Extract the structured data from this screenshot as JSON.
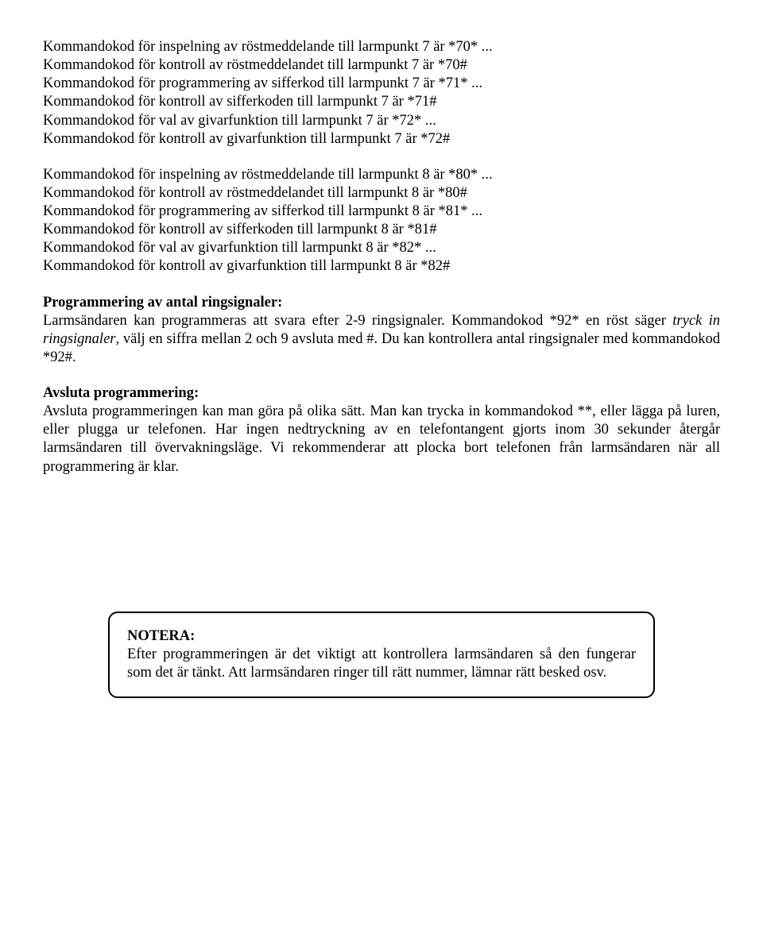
{
  "block1": {
    "l1": "Kommandokod för inspelning av röstmeddelande till larmpunkt 7 är *70* ...",
    "l2": "Kommandokod för kontroll av röstmeddelandet till larmpunkt 7 är *70#",
    "l3": "Kommandokod för programmering av sifferkod till larmpunkt 7 är *71* ...",
    "l4": "Kommandokod för kontroll av sifferkoden till larmpunkt 7 är *71#",
    "l5": "Kommandokod för val av givarfunktion till larmpunkt 7 är *72* ...",
    "l6": "Kommandokod för kontroll av givarfunktion till larmpunkt 7 är *72#"
  },
  "block2": {
    "l1": "Kommandokod för inspelning av röstmeddelande till larmpunkt 8 är *80* ...",
    "l2": "Kommandokod för kontroll av röstmeddelandet till larmpunkt 8 är *80#",
    "l3": "Kommandokod för programmering av sifferkod till larmpunkt 8 är *81* ...",
    "l4": "Kommandokod för kontroll av sifferkoden till larmpunkt 8 är *81#",
    "l5": "Kommandokod för val av givarfunktion till larmpunkt 8 är *82* ...",
    "l6": "Kommandokod för kontroll av givarfunktion till larmpunkt 8 är *82#"
  },
  "ringsig": {
    "heading": "Programmering av antal ringsignaler:",
    "body_pre": "Larmsändaren kan programmeras att svara efter 2-9 ringsignaler. Kommandokod *92* en röst säger ",
    "body_italic": "tryck in ringsignaler",
    "body_post": ", välj en siffra mellan 2 och 9 avsluta med #. Du kan kontrollera antal ringsignaler med kommandokod *92#."
  },
  "avsluta": {
    "heading": "Avsluta programmering:",
    "body": "Avsluta programmeringen kan man göra på olika sätt. Man kan trycka in kommandokod **, eller lägga på luren, eller plugga ur telefonen. Har ingen nedtryckning av en telefontangent gjorts inom 30 sekunder återgår larmsändaren till övervakningsläge. Vi rekommenderar att plocka bort telefonen från larmsändaren när all programmering är klar."
  },
  "notera": {
    "title": "NOTERA:",
    "body": "Efter programmeringen är det viktigt att kontrollera larmsändaren så den fungerar som det är tänkt. Att larmsändaren ringer till rätt nummer, lämnar rätt besked osv."
  }
}
